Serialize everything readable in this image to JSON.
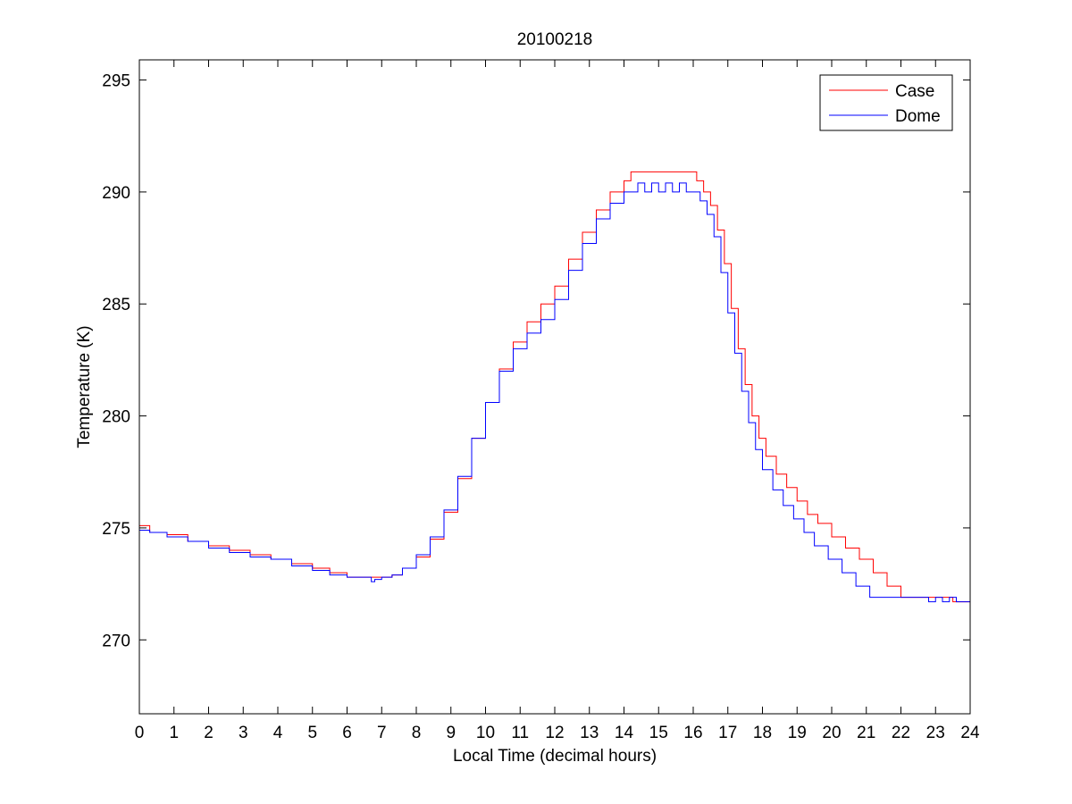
{
  "chart_data": {
    "type": "line",
    "title": "20100218",
    "xlabel": "Local Time (decimal hours)",
    "ylabel": "Temperature (K)",
    "xlim": [
      0,
      24
    ],
    "ylim": [
      266.7,
      295.9
    ],
    "xticks": [
      0,
      1,
      2,
      3,
      4,
      5,
      6,
      7,
      8,
      9,
      10,
      11,
      12,
      13,
      14,
      15,
      16,
      17,
      18,
      19,
      20,
      21,
      22,
      23,
      24
    ],
    "xtick_labels": [
      "0",
      "1",
      "2",
      "3",
      "4",
      "5",
      "6",
      "7",
      "8",
      "9",
      "10",
      "11",
      "12",
      "13",
      "14",
      "15",
      "16",
      "17",
      "18",
      "19",
      "20",
      "21",
      "22",
      "23",
      "24"
    ],
    "yticks": [
      270,
      275,
      280,
      285,
      290,
      295
    ],
    "ytick_labels": [
      "270",
      "275",
      "280",
      "285",
      "290",
      "295"
    ],
    "grid": false,
    "legend_position": "top-right",
    "series": [
      {
        "name": "Case",
        "color": "#ff0000",
        "x": [
          0,
          0.3,
          0.8,
          1.4,
          2.0,
          2.6,
          3.2,
          3.8,
          4.4,
          5.0,
          5.5,
          6.0,
          6.5,
          7.0,
          7.3,
          7.6,
          8.0,
          8.4,
          8.8,
          9.2,
          9.6,
          10.0,
          10.4,
          10.8,
          11.2,
          11.6,
          12.0,
          12.4,
          12.8,
          13.2,
          13.6,
          14.0,
          14.2,
          14.6,
          15.0,
          15.5,
          15.9,
          16.1,
          16.3,
          16.5,
          16.7,
          16.9,
          17.1,
          17.3,
          17.5,
          17.7,
          17.9,
          18.1,
          18.4,
          18.7,
          19.0,
          19.3,
          19.6,
          20.0,
          20.4,
          20.8,
          21.2,
          21.6,
          22.0,
          22.5,
          23.0,
          23.5,
          24.0
        ],
        "y": [
          275.1,
          274.8,
          274.7,
          274.4,
          274.2,
          274.0,
          273.8,
          273.6,
          273.4,
          273.2,
          273.0,
          272.8,
          272.8,
          272.8,
          272.9,
          273.2,
          273.7,
          274.5,
          275.7,
          277.2,
          279.0,
          280.6,
          282.1,
          283.3,
          284.2,
          285.0,
          285.8,
          287.0,
          288.2,
          289.2,
          290.0,
          290.5,
          290.9,
          290.9,
          290.9,
          290.9,
          290.9,
          290.5,
          290.0,
          289.4,
          288.3,
          286.8,
          284.8,
          283.0,
          281.4,
          280.0,
          279.0,
          278.2,
          277.4,
          276.8,
          276.2,
          275.6,
          275.2,
          274.6,
          274.1,
          273.6,
          273.0,
          272.4,
          271.9,
          271.9,
          271.9,
          271.7,
          271.7
        ]
      },
      {
        "name": "Dome",
        "color": "#0000ff",
        "x": [
          0,
          0.3,
          0.8,
          1.4,
          2.0,
          2.6,
          3.2,
          3.8,
          4.4,
          5.0,
          5.5,
          6.0,
          6.5,
          6.7,
          6.8,
          7.0,
          7.3,
          7.6,
          8.0,
          8.4,
          8.8,
          9.2,
          9.6,
          10.0,
          10.4,
          10.8,
          11.2,
          11.6,
          12.0,
          12.4,
          12.8,
          13.2,
          13.6,
          14.0,
          14.2,
          14.4,
          14.6,
          14.8,
          15.0,
          15.2,
          15.4,
          15.6,
          15.8,
          16.0,
          16.2,
          16.4,
          16.6,
          16.8,
          17.0,
          17.2,
          17.4,
          17.6,
          17.8,
          18.0,
          18.3,
          18.6,
          18.9,
          19.2,
          19.5,
          19.9,
          20.3,
          20.7,
          21.1,
          21.5,
          22.0,
          22.5,
          22.8,
          23.0,
          23.2,
          23.4,
          23.6,
          24.0
        ],
        "y": [
          274.9,
          274.8,
          274.6,
          274.4,
          274.1,
          273.9,
          273.7,
          273.6,
          273.3,
          273.1,
          272.9,
          272.8,
          272.8,
          272.6,
          272.7,
          272.8,
          272.9,
          273.2,
          273.8,
          274.6,
          275.8,
          277.3,
          279.0,
          280.6,
          282.0,
          283.0,
          283.7,
          284.3,
          285.2,
          286.5,
          287.7,
          288.8,
          289.5,
          290.0,
          290.0,
          290.4,
          290.0,
          290.4,
          290.0,
          290.4,
          290.0,
          290.4,
          290.0,
          290.0,
          289.6,
          289.0,
          288.0,
          286.4,
          284.6,
          282.8,
          281.1,
          279.7,
          278.5,
          277.6,
          276.7,
          276.0,
          275.4,
          274.8,
          274.2,
          273.6,
          273.0,
          272.4,
          271.9,
          271.9,
          271.9,
          271.9,
          271.7,
          271.9,
          271.7,
          271.9,
          271.7,
          271.7
        ]
      }
    ]
  }
}
